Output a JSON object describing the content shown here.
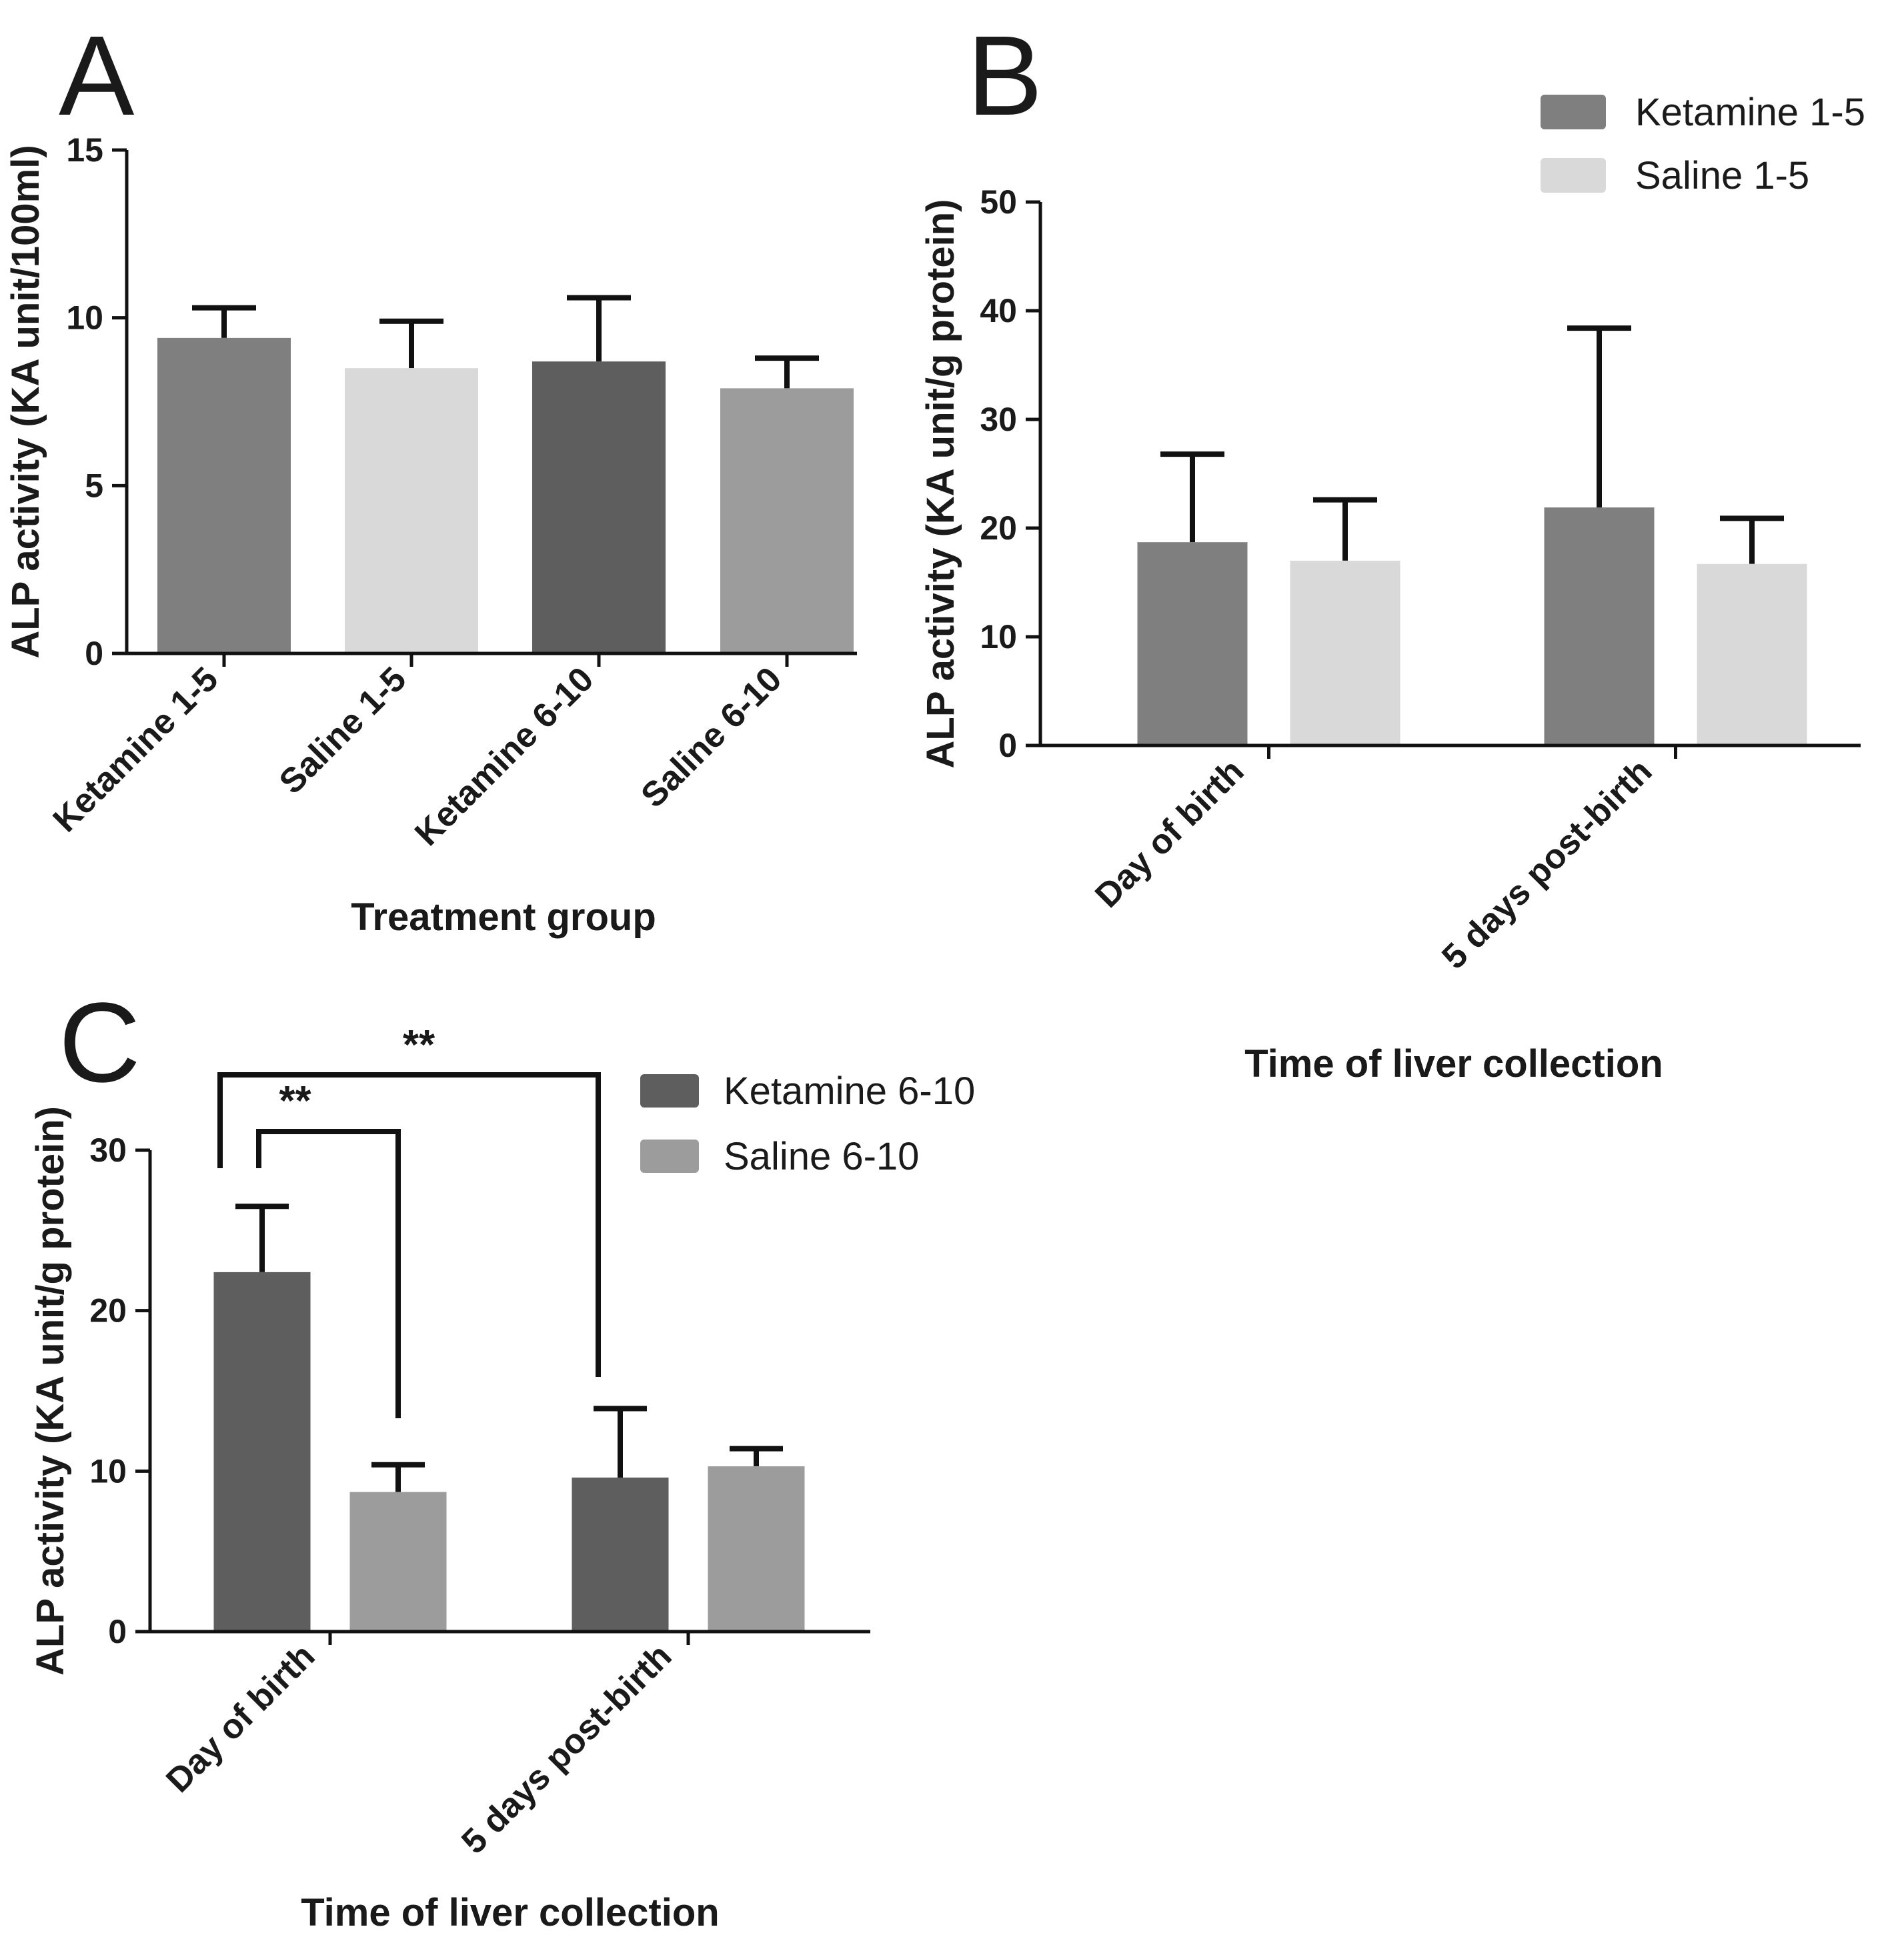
{
  "chart_data": [
    {
      "panel": "A",
      "type": "bar",
      "title": "",
      "xlabel": "Treatment group",
      "ylabel": "ALP activity (KA unit/100ml)",
      "ylim": [
        0,
        15
      ],
      "yticks": [
        0,
        5,
        10,
        15
      ],
      "categories": [
        "Ketamine 1-5",
        "Saline 1-5",
        "Ketamine 6-10",
        "Saline 6-10"
      ],
      "values": [
        9.4,
        8.5,
        8.7,
        7.9
      ],
      "errors": [
        0.9,
        1.4,
        1.9,
        0.9
      ],
      "colors": [
        "#7f7f7f",
        "#d9d9d9",
        "#5e5e5e",
        "#9c9c9c"
      ],
      "legend": []
    },
    {
      "panel": "B",
      "type": "bar",
      "title": "",
      "xlabel": "Time of liver collection",
      "ylabel": "ALP activity (KA unit/g protein)",
      "ylim": [
        0,
        50
      ],
      "yticks": [
        0,
        10,
        20,
        30,
        40,
        50
      ],
      "categories": [
        "Day of birth",
        "5 days post-birth"
      ],
      "series": [
        {
          "name": "Ketamine 1-5",
          "color": "#7f7f7f",
          "values": [
            18.7,
            21.9
          ],
          "errors": [
            8.1,
            16.5
          ]
        },
        {
          "name": "Saline 1-5",
          "color": "#d9d9d9",
          "values": [
            17.0,
            16.7
          ],
          "errors": [
            5.6,
            4.2
          ]
        }
      ],
      "legend_position": "top-right"
    },
    {
      "panel": "C",
      "type": "bar",
      "title": "",
      "xlabel": "Time of liver collection",
      "ylabel": "ALP activity (KA unit/g protein)",
      "ylim": [
        0,
        30
      ],
      "yticks": [
        0,
        10,
        20,
        30
      ],
      "categories": [
        "Day of birth",
        "5 days post-birth"
      ],
      "series": [
        {
          "name": "Ketamine 6-10",
          "color": "#5e5e5e",
          "values": [
            22.4,
            9.6
          ],
          "errors": [
            4.1,
            4.3
          ]
        },
        {
          "name": "Saline 6-10",
          "color": "#9c9c9c",
          "values": [
            8.7,
            10.3
          ],
          "errors": [
            1.7,
            1.1
          ]
        }
      ],
      "legend_position": "top-right",
      "significance": [
        {
          "from": "Ketamine 6-10 · Day of birth",
          "to": "Saline 6-10 · Day of birth",
          "label": "**"
        },
        {
          "from": "Ketamine 6-10 · Day of birth",
          "to": "Ketamine 6-10 · 5 days post-birth",
          "label": "**"
        }
      ]
    }
  ]
}
